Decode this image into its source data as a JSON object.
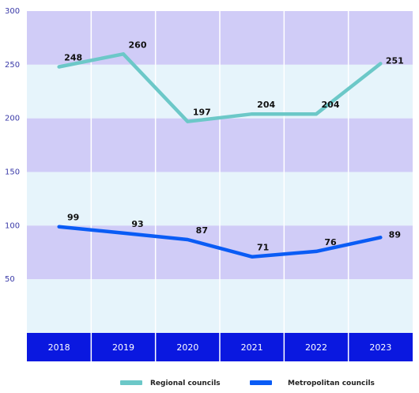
{
  "chart_data": {
    "type": "line",
    "categories": [
      "2018",
      "2019",
      "2020",
      "2021",
      "2022",
      "2023"
    ],
    "series": [
      {
        "name": "Regional councils",
        "values": [
          248,
          260,
          197,
          204,
          204,
          251
        ],
        "color": "#6cc8c8"
      },
      {
        "name": "Metropolitan councils",
        "values": [
          99,
          93,
          87,
          71,
          76,
          89
        ],
        "color": "#0a5cf5"
      }
    ],
    "y_ticks": [
      "300",
      "250",
      "200",
      "150",
      "100",
      "50"
    ],
    "ylim": [
      0,
      300
    ],
    "grid": true,
    "legend": "bottom",
    "colors": {
      "band_dark": "#d0ccf7",
      "band_light": "#e6f4fb",
      "axis_bar": "#0a18e0"
    }
  }
}
